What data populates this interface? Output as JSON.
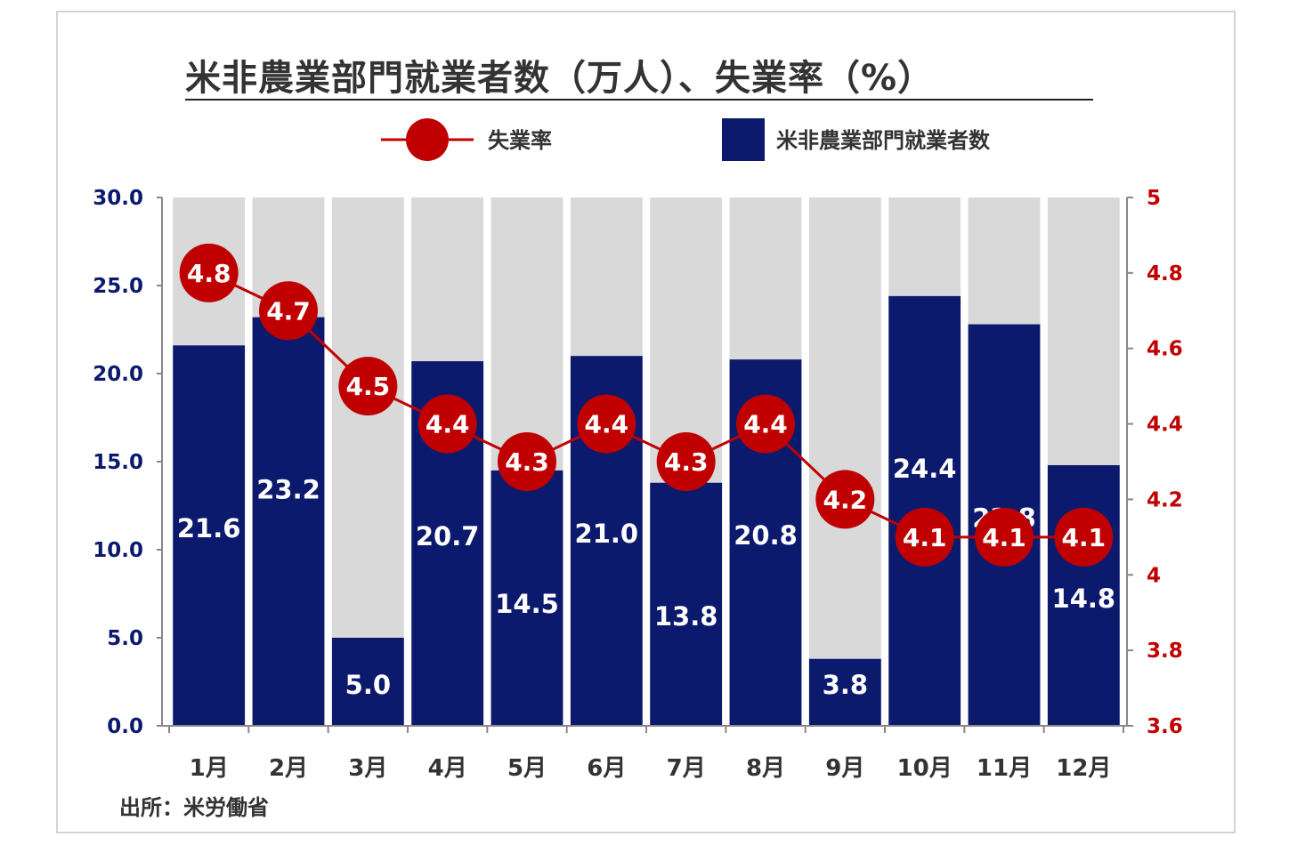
{
  "chart_data": {
    "type": "bar",
    "title": "米非農業部門就業者数（万人）、失業率（%）",
    "categories": [
      "1月",
      "2月",
      "3月",
      "4月",
      "5月",
      "6月",
      "7月",
      "8月",
      "9月",
      "10月",
      "11月",
      "12月"
    ],
    "series": [
      {
        "name": "米非農業部門就業者数",
        "type": "bar",
        "axis": "left",
        "color": "#0c1a6e",
        "values": [
          21.6,
          23.2,
          5.0,
          20.7,
          14.5,
          21.0,
          13.8,
          20.8,
          3.8,
          24.4,
          22.8,
          14.8
        ],
        "labels": [
          "21.6",
          "23.2",
          "5.0",
          "20.7",
          "14.5",
          "21.0",
          "13.8",
          "20.8",
          "3.8",
          "24.4",
          "22.8",
          "14.8"
        ]
      },
      {
        "name": "失業率",
        "type": "line",
        "axis": "right",
        "color": "#c00000",
        "values": [
          4.8,
          4.7,
          4.5,
          4.4,
          4.3,
          4.4,
          4.3,
          4.4,
          4.2,
          4.1,
          4.1,
          4.1
        ],
        "labels": [
          "4.8",
          "4.7",
          "4.5",
          "4.4",
          "4.3",
          "4.4",
          "4.3",
          "4.4",
          "4.2",
          "4.1",
          "4.1",
          "4.1"
        ]
      }
    ],
    "y_left": {
      "range": [
        0,
        30
      ],
      "ticks": [
        "0.0",
        "5.0",
        "10.0",
        "15.0",
        "20.0",
        "25.0",
        "30.0"
      ],
      "color": "#0c1a6e"
    },
    "y_right": {
      "range": [
        3.6,
        5.0
      ],
      "ticks": [
        "3.6",
        "3.8",
        "4",
        "4.2",
        "4.4",
        "4.6",
        "4.8",
        "5"
      ],
      "color": "#c00000"
    },
    "background_bar_color": "#d9d9d9",
    "legend_position": "top-center",
    "grid": false
  },
  "source": "出所：米労働省"
}
